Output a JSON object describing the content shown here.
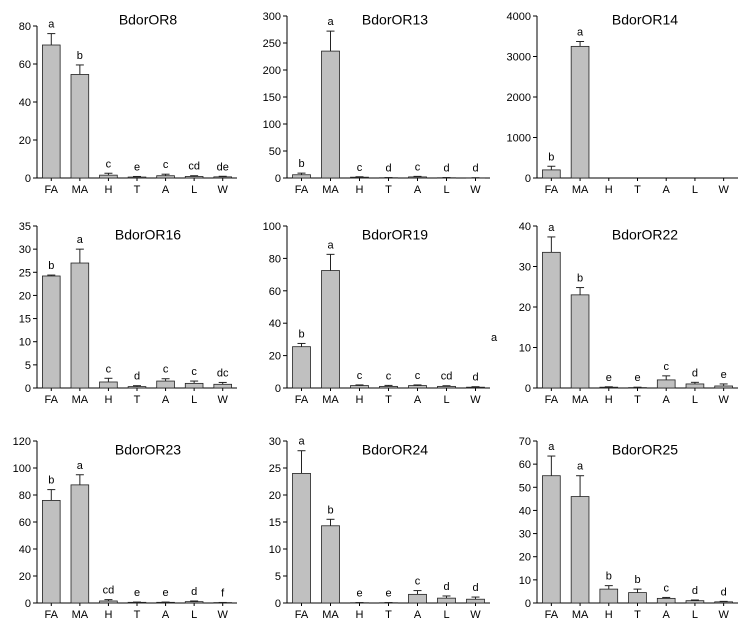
{
  "colors": {
    "bar": "#c0c0c0",
    "bar_edge": "#222222",
    "axis": "#000000"
  },
  "stray_label": "a",
  "chart_data": [
    {
      "type": "bar",
      "title": "BdorOR8",
      "categories": [
        "FA",
        "MA",
        "H",
        "T",
        "A",
        "L",
        "W"
      ],
      "values": [
        70,
        54.5,
        1.5,
        0.5,
        1.2,
        0.8,
        0.6
      ],
      "errors": [
        6,
        5,
        1,
        0.3,
        0.8,
        0.4,
        0.3
      ],
      "letters": [
        "a",
        "b",
        "c",
        "e",
        "c",
        "cd",
        "de"
      ],
      "ylim": [
        0,
        80
      ],
      "yticks": [
        0,
        20,
        40,
        60,
        80
      ]
    },
    {
      "type": "bar",
      "title": "BdorOR13",
      "categories": [
        "FA",
        "MA",
        "H",
        "T",
        "A",
        "L",
        "W"
      ],
      "values": [
        6,
        235,
        1.5,
        0.5,
        2,
        0.5,
        0.3
      ],
      "errors": [
        3,
        37,
        0.8,
        0.3,
        1,
        0.3,
        0.2
      ],
      "letters": [
        "b",
        "a",
        "c",
        "d",
        "c",
        "d",
        "d"
      ],
      "ylim": [
        0,
        300
      ],
      "yticks": [
        0,
        50,
        100,
        150,
        200,
        250,
        300
      ]
    },
    {
      "type": "bar",
      "title": "BdorOR14",
      "categories": [
        "FA",
        "MA",
        "H",
        "T",
        "A",
        "L",
        "W"
      ],
      "values": [
        200,
        3250,
        0,
        0,
        0,
        0,
        0
      ],
      "errors": [
        90,
        120,
        0,
        0,
        0,
        0,
        0
      ],
      "letters": [
        "b",
        "a",
        "",
        "",
        "",
        "",
        ""
      ],
      "ylim": [
        0,
        4000
      ],
      "yticks": [
        0,
        1000,
        2000,
        3000,
        4000
      ]
    },
    {
      "type": "bar",
      "title": "BdorOR16",
      "categories": [
        "FA",
        "MA",
        "H",
        "T",
        "A",
        "L",
        "W"
      ],
      "values": [
        24.2,
        27,
        1.3,
        0.3,
        1.5,
        1,
        0.8
      ],
      "errors": [
        0.2,
        3,
        0.8,
        0.2,
        0.5,
        0.5,
        0.4
      ],
      "letters": [
        "b",
        "a",
        "c",
        "d",
        "c",
        "c",
        "dc"
      ],
      "ylim": [
        0,
        35
      ],
      "yticks": [
        0,
        5,
        10,
        15,
        20,
        25,
        30,
        35
      ]
    },
    {
      "type": "bar",
      "title": "BdorOR19",
      "categories": [
        "FA",
        "MA",
        "H",
        "T",
        "A",
        "L",
        "W"
      ],
      "values": [
        25.5,
        72.5,
        1.5,
        1,
        1.5,
        1,
        0.5
      ],
      "errors": [
        2,
        10,
        0.4,
        0.6,
        0.4,
        0.4,
        0.3
      ],
      "letters": [
        "b",
        "a",
        "c",
        "c",
        "c",
        "cd",
        "d"
      ],
      "ylim": [
        0,
        100
      ],
      "yticks": [
        0,
        20,
        40,
        60,
        80,
        100
      ]
    },
    {
      "type": "bar",
      "title": "BdorOR22",
      "categories": [
        "FA",
        "MA",
        "H",
        "T",
        "A",
        "L",
        "W"
      ],
      "values": [
        33.5,
        23,
        0.2,
        0.1,
        2,
        1,
        0.5
      ],
      "errors": [
        3.8,
        1.8,
        0.1,
        0.1,
        1,
        0.4,
        0.5
      ],
      "letters": [
        "a",
        "b",
        "e",
        "e",
        "c",
        "d",
        "e"
      ],
      "ylim": [
        0,
        40
      ],
      "yticks": [
        0,
        10,
        20,
        30,
        40
      ]
    },
    {
      "type": "bar",
      "title": "BdorOR23",
      "categories": [
        "FA",
        "MA",
        "H",
        "T",
        "A",
        "L",
        "W"
      ],
      "values": [
        76,
        87.5,
        1.5,
        0.5,
        0.5,
        1,
        0.3
      ],
      "errors": [
        8,
        7.5,
        1,
        0.2,
        0.2,
        0.5,
        0.1
      ],
      "letters": [
        "b",
        "a",
        "cd",
        "e",
        "e",
        "d",
        "f"
      ],
      "ylim": [
        0,
        120
      ],
      "yticks": [
        0,
        20,
        40,
        60,
        80,
        100,
        120
      ]
    },
    {
      "type": "bar",
      "title": "BdorOR24",
      "categories": [
        "FA",
        "MA",
        "H",
        "T",
        "A",
        "L",
        "W"
      ],
      "values": [
        24,
        14.3,
        0.05,
        0.05,
        1.6,
        0.9,
        0.7
      ],
      "errors": [
        4.2,
        1.2,
        0.03,
        0.03,
        0.7,
        0.4,
        0.4
      ],
      "letters": [
        "a",
        "b",
        "e",
        "e",
        "c",
        "d",
        "d"
      ],
      "ylim": [
        0,
        30
      ],
      "yticks": [
        0,
        5,
        10,
        15,
        20,
        25,
        30
      ]
    },
    {
      "type": "bar",
      "title": "BdorOR25",
      "categories": [
        "FA",
        "MA",
        "H",
        "T",
        "A",
        "L",
        "W"
      ],
      "values": [
        55,
        46,
        6,
        4.5,
        2,
        1,
        0.5
      ],
      "errors": [
        8.5,
        9,
        1.5,
        1.5,
        0.4,
        0.3,
        0.2
      ],
      "letters": [
        "a",
        "a",
        "b",
        "b",
        "c",
        "d",
        "d"
      ],
      "ylim": [
        0,
        70
      ],
      "yticks": [
        0,
        10,
        20,
        30,
        40,
        50,
        60,
        70
      ]
    }
  ]
}
